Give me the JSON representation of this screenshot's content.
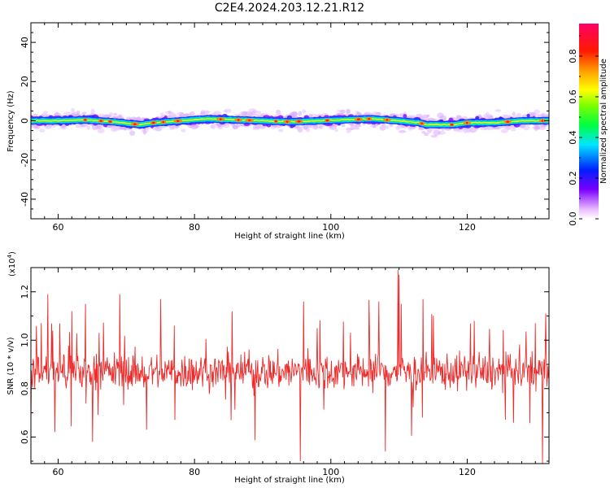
{
  "page": {
    "title": "C2E4.2024.203.12.21.R12"
  },
  "chart_data": [
    {
      "type": "heatmap",
      "title": "C2E4.2024.203.12.21.R12",
      "xlabel": "Height of straight line (km)",
      "ylabel": "Frequency (Hz)",
      "xlim": [
        56,
        132
      ],
      "ylim": [
        -50,
        50
      ],
      "xticks": [
        60,
        80,
        100,
        120
      ],
      "yticks": [
        -40,
        -20,
        0,
        20,
        40
      ],
      "band_center_hz": [
        [
          56,
          0.0
        ],
        [
          60,
          0.0
        ],
        [
          64,
          0.5
        ],
        [
          68,
          -0.5
        ],
        [
          72,
          -2.0
        ],
        [
          74,
          -1.0
        ],
        [
          78,
          0.0
        ],
        [
          82,
          1.0
        ],
        [
          86,
          0.5
        ],
        [
          90,
          0.0
        ],
        [
          94,
          -0.5
        ],
        [
          98,
          0.0
        ],
        [
          102,
          0.5
        ],
        [
          106,
          1.0
        ],
        [
          110,
          0.0
        ],
        [
          113,
          -1.0
        ],
        [
          114,
          -2.0
        ],
        [
          118,
          -2.0
        ],
        [
          120,
          -1.0
        ],
        [
          124,
          -1.0
        ],
        [
          128,
          0.0
        ],
        [
          132,
          0.0
        ]
      ],
      "colorbar": {
        "label": "Normalized spectral amplitude",
        "ticks": [
          "0.0",
          "0.2",
          "0.4",
          "0.6",
          "0.8"
        ],
        "range": [
          0,
          0.96
        ]
      },
      "grid": false
    },
    {
      "type": "line",
      "xlabel": "Height of straight line (km)",
      "ylabel": "SNR (10 * v/v)",
      "y_multiplier": "(x10",
      "y_multiplier_exp": "4",
      "y_multiplier_close": ")",
      "xlim": [
        56,
        132
      ],
      "ylim": [
        0.49,
        1.3
      ],
      "xticks": [
        60,
        80,
        100,
        120
      ],
      "yticks": [
        "0.6",
        "0.8",
        "1.0",
        "1.2"
      ],
      "series": [
        {
          "color": "#ee2a2a",
          "baseline": 0.87,
          "spikes": [
            {
              "x": 57.5,
              "y": 1.07
            },
            {
              "x": 58.5,
              "y": 1.19
            },
            {
              "x": 59.5,
              "y": 0.62
            },
            {
              "x": 62.0,
              "y": 1.12
            },
            {
              "x": 64.0,
              "y": 1.15
            },
            {
              "x": 65.0,
              "y": 0.58
            },
            {
              "x": 66.0,
              "y": 1.03
            },
            {
              "x": 69.0,
              "y": 1.19
            },
            {
              "x": 75.0,
              "y": 1.17
            },
            {
              "x": 77.0,
              "y": 1.06
            },
            {
              "x": 85.5,
              "y": 1.12
            },
            {
              "x": 95.5,
              "y": 0.5
            },
            {
              "x": 96.0,
              "y": 1.16
            },
            {
              "x": 98.0,
              "y": 1.05
            },
            {
              "x": 107.0,
              "y": 1.16
            },
            {
              "x": 108.0,
              "y": 0.54
            },
            {
              "x": 109.8,
              "y": 1.29
            },
            {
              "x": 110.0,
              "y": 1.27
            },
            {
              "x": 110.3,
              "y": 1.15
            },
            {
              "x": 113.5,
              "y": 1.17
            },
            {
              "x": 121.0,
              "y": 1.08
            },
            {
              "x": 130.0,
              "y": 1.07
            },
            {
              "x": 131.0,
              "y": 0.49
            },
            {
              "x": 131.5,
              "y": 1.11
            }
          ]
        }
      ]
    }
  ]
}
